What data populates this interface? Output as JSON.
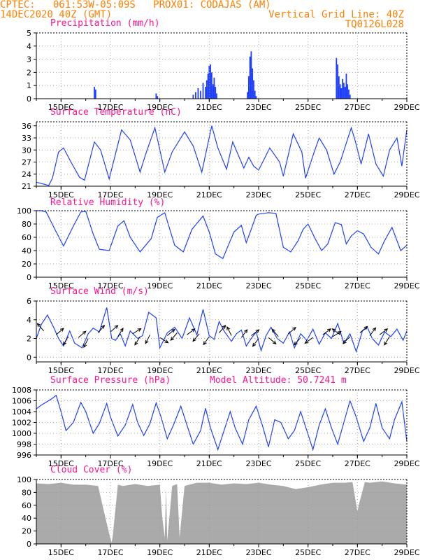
{
  "header": {
    "line1_left": "CPTEC:   061:53W-05:09S   PROX01: CODAJAS (AM)",
    "line2_left": "14DEC2020 40Z (GMT)",
    "line2_right": "Vertical Grid Line: 40Z",
    "line3_right": "TQ0126L028"
  },
  "colors": {
    "header": "#ff7f00",
    "title": "#ff1493",
    "series": "#1f3fff",
    "cloud": "#aaaaaa",
    "grid": "#999999"
  },
  "x_tick_labels": [
    "15DEC",
    "17DEC",
    "19DEC",
    "21DEC",
    "23DEC",
    "25DEC",
    "27DEC",
    "29DEC"
  ],
  "x_tick_days": [
    15,
    17,
    19,
    21,
    23,
    25,
    27,
    29
  ],
  "x_range": [
    14.0,
    29.0
  ],
  "chart_data": [
    {
      "type": "bar",
      "title": "Precipitation (mm/h)",
      "ylim": [
        0,
        5
      ],
      "yticks": [
        0,
        1,
        2,
        3,
        4,
        5
      ],
      "x": [
        16.35,
        16.4,
        18.85,
        18.9,
        20.35,
        20.45,
        20.55,
        20.65,
        20.75,
        20.85,
        20.9,
        20.95,
        21.0,
        21.05,
        21.1,
        21.15,
        21.2,
        21.25,
        21.3,
        22.55,
        22.6,
        22.65,
        22.7,
        22.75,
        22.8,
        22.85,
        22.9,
        26.15,
        26.2,
        26.25,
        26.3,
        26.35,
        26.4,
        26.45,
        26.5,
        26.55,
        26.6,
        26.65,
        26.7
      ],
      "values": [
        0.9,
        0.7,
        0.4,
        0.2,
        0.3,
        0.5,
        0.8,
        0.6,
        1.2,
        0.9,
        1.4,
        1.9,
        2.5,
        2.6,
        2.0,
        1.1,
        1.6,
        0.9,
        0.4,
        0.5,
        1.7,
        3.2,
        3.6,
        2.3,
        1.4,
        0.6,
        0.2,
        3.1,
        2.6,
        1.7,
        1.1,
        0.8,
        1.5,
        1.2,
        0.9,
        1.9,
        1.1,
        0.7,
        0.3
      ]
    },
    {
      "type": "line",
      "title": "Surface Temperature (nC)",
      "ylim": [
        21,
        37
      ],
      "yticks": [
        21,
        24,
        27,
        30,
        33,
        36
      ],
      "x": [
        14.0,
        14.25,
        14.5,
        14.65,
        14.9,
        15.1,
        15.4,
        15.75,
        15.95,
        16.35,
        16.6,
        16.95,
        17.45,
        17.8,
        18.2,
        18.4,
        18.8,
        19.0,
        19.2,
        19.5,
        20.0,
        20.35,
        20.7,
        21.1,
        21.35,
        21.7,
        21.95,
        22.4,
        22.6,
        22.8,
        23.0,
        23.45,
        23.85,
        24.0,
        24.4,
        24.75,
        24.9,
        25.25,
        25.45,
        25.75,
        26.05,
        26.3,
        26.75,
        26.9,
        27.15,
        27.45,
        27.75,
        28.05,
        28.3,
        28.6,
        28.8,
        29.0
      ],
      "values": [
        22.0,
        21.6,
        21.2,
        23.0,
        29.5,
        30.5,
        27.0,
        23.2,
        22.5,
        32.0,
        30.0,
        22.8,
        35.0,
        32.5,
        24.5,
        28.5,
        35.5,
        30.0,
        24.5,
        29.5,
        34.5,
        31.0,
        24.5,
        36.0,
        30.5,
        25.2,
        32.0,
        25.5,
        28.2,
        26.0,
        25.0,
        30.5,
        27.0,
        23.5,
        34.0,
        29.5,
        23.0,
        29.5,
        33.0,
        30.0,
        24.0,
        27.0,
        35.5,
        32.5,
        26.5,
        34.0,
        26.5,
        23.5,
        30.0,
        33.0,
        26.0,
        35.0
      ]
    },
    {
      "type": "line",
      "title": "Relative Humidity (%)",
      "ylim": [
        0,
        100
      ],
      "yticks": [
        0,
        20,
        40,
        60,
        80,
        100
      ],
      "x": [
        14.0,
        14.2,
        14.4,
        14.75,
        15.1,
        15.5,
        15.8,
        16.0,
        16.3,
        16.55,
        16.95,
        17.3,
        17.55,
        17.8,
        18.2,
        18.65,
        18.9,
        19.2,
        19.6,
        19.95,
        20.3,
        20.75,
        21.0,
        21.25,
        21.55,
        21.85,
        22.0,
        22.3,
        22.5,
        22.7,
        22.9,
        23.0,
        23.4,
        23.7,
        24.0,
        24.3,
        24.6,
        24.8,
        25.0,
        25.3,
        25.55,
        25.8,
        26.1,
        26.35,
        26.55,
        26.75,
        27.0,
        27.25,
        27.55,
        27.85,
        28.1,
        28.4,
        28.75,
        29.0
      ],
      "values": [
        100,
        100,
        98,
        72,
        47,
        77,
        98,
        99,
        65,
        42,
        40,
        77,
        85,
        60,
        38,
        58,
        90,
        97,
        48,
        38,
        72,
        92,
        68,
        35,
        28,
        55,
        68,
        78,
        52,
        72,
        93,
        95,
        97,
        96,
        45,
        38,
        55,
        72,
        80,
        57,
        40,
        50,
        82,
        79,
        50,
        62,
        70,
        65,
        45,
        35,
        55,
        75,
        40,
        48
      ]
    },
    {
      "type": "line",
      "title": "Surface Wind (m/s)",
      "ylim": [
        -0.5,
        6
      ],
      "yticks": [
        0,
        2,
        4,
        6
      ],
      "x": [
        14.0,
        14.2,
        14.45,
        14.7,
        14.9,
        15.1,
        15.35,
        15.55,
        15.85,
        16.1,
        16.3,
        16.55,
        16.85,
        17.05,
        17.2,
        17.4,
        17.6,
        17.8,
        18.1,
        18.3,
        18.55,
        18.85,
        19.0,
        19.3,
        19.6,
        19.9,
        20.2,
        20.5,
        20.75,
        21.0,
        21.2,
        21.4,
        21.6,
        21.9,
        22.1,
        22.3,
        22.5,
        22.7,
        22.9,
        23.1,
        23.3,
        23.5,
        23.75,
        24.0,
        24.25,
        24.45,
        24.7,
        24.95,
        25.2,
        25.45,
        25.7,
        25.95,
        26.2,
        26.45,
        26.7,
        26.95,
        27.2,
        27.4,
        27.6,
        27.85,
        28.1,
        28.35,
        28.6,
        28.85,
        29.0
      ],
      "values": [
        2.0,
        3.5,
        4.5,
        3.2,
        2.0,
        1.2,
        2.8,
        1.5,
        1.0,
        2.5,
        3.1,
        2.7,
        5.3,
        2.0,
        1.8,
        2.5,
        1.2,
        2.8,
        2.0,
        2.3,
        4.8,
        4.2,
        1.0,
        2.6,
        3.2,
        2.0,
        4.2,
        2.4,
        5.1,
        2.3,
        1.9,
        3.8,
        2.8,
        1.7,
        2.5,
        2.9,
        1.2,
        2.0,
        2.7,
        0.7,
        2.3,
        3.2,
        2.0,
        1.5,
        2.7,
        1.0,
        2.5,
        1.8,
        3.0,
        1.4,
        2.6,
        2.0,
        3.6,
        1.5,
        2.5,
        0.6,
        2.8,
        3.2,
        2.0,
        1.3,
        2.7,
        2.2,
        3.0,
        1.8,
        2.8
      ],
      "arrows": {
        "x": [
          14.3,
          14.8,
          15.3,
          15.7,
          16.1,
          16.5,
          17.0,
          17.3,
          17.9,
          18.2,
          18.6,
          19.0,
          19.3,
          19.7,
          20.1,
          20.6,
          21.0,
          21.4,
          21.9,
          22.3,
          22.7,
          23.0,
          23.4,
          23.8,
          24.2,
          24.7,
          25.2,
          25.6,
          26.0,
          26.3,
          26.7,
          27.1,
          27.5,
          27.9,
          28.3
        ],
        "y": [
          2.8,
          2.4,
          2.2,
          2.1,
          2.0,
          2.6,
          2.7,
          2.2,
          2.5,
          2.2,
          2.4,
          2.1,
          2.3,
          2.6,
          2.4,
          2.5,
          2.2,
          2.6,
          2.3,
          2.1,
          2.3,
          2.0,
          2.1,
          2.2,
          2.5,
          2.1,
          2.1,
          2.4,
          2.2,
          2.4,
          2.2,
          2.6,
          2.3,
          2.4,
          2.2
        ],
        "u": [
          -0.6,
          0.7,
          -0.5,
          0.6,
          -0.4,
          0.5,
          0.8,
          0.5,
          0.8,
          -0.5,
          -0.4,
          0.8,
          0.7,
          -0.6,
          0.8,
          -0.6,
          -0.5,
          0.6,
          -0.4,
          0.6,
          0.8,
          -0.6,
          0.7,
          -0.6,
          0.7,
          -0.6,
          -0.7,
          0.8,
          0.8,
          -0.8,
          -0.6,
          0.7,
          0.6,
          0.8,
          -0.5
        ],
        "v": [
          0.7,
          0.6,
          -0.8,
          0.5,
          -0.8,
          0.6,
          0.7,
          0.8,
          0.5,
          -0.8,
          -0.8,
          -0.5,
          0.6,
          -0.7,
          0.6,
          -0.7,
          -0.7,
          0.7,
          0.8,
          0.8,
          0.6,
          -0.8,
          -0.6,
          0.7,
          0.6,
          -0.7,
          -0.5,
          0.6,
          0.5,
          0.6,
          -0.6,
          0.6,
          0.8,
          0.6,
          -0.8
        ]
      }
    },
    {
      "type": "line",
      "title": "Surface Pressure (hPa)",
      "annotation": "Model Altitude: 50.7241 m",
      "ylim": [
        996,
        1008
      ],
      "yticks": [
        996,
        998,
        1000,
        1002,
        1004,
        1006,
        1008
      ],
      "x": [
        14.0,
        14.2,
        14.6,
        14.8,
        15.0,
        15.2,
        15.5,
        15.8,
        16.0,
        16.3,
        16.55,
        16.85,
        17.0,
        17.3,
        17.6,
        17.9,
        18.1,
        18.35,
        18.6,
        18.85,
        19.05,
        19.3,
        19.55,
        19.85,
        20.1,
        20.35,
        20.65,
        20.85,
        21.05,
        21.35,
        21.6,
        21.85,
        22.05,
        22.35,
        22.6,
        22.9,
        23.15,
        23.4,
        23.65,
        23.9,
        24.2,
        24.45,
        24.7,
        24.95,
        25.2,
        25.45,
        25.7,
        25.95,
        26.2,
        26.45,
        26.7,
        26.95,
        27.25,
        27.5,
        27.75,
        28.0,
        28.3,
        28.5,
        28.8,
        29.0
      ],
      "values": [
        1004.5,
        1005.2,
        1006.3,
        1007.0,
        1004.0,
        1000.5,
        1002.0,
        1005.7,
        1004.0,
        1000.0,
        1001.8,
        1005.5,
        1003.0,
        999.5,
        1001.5,
        1005.3,
        1002.0,
        999.6,
        1001.8,
        1005.6,
        1003.0,
        999.0,
        1001.5,
        1005.0,
        1001.5,
        998.0,
        1000.5,
        1004.6,
        1001.0,
        997.0,
        1000.5,
        1004.0,
        1001.0,
        998.0,
        1002.5,
        1005.0,
        1001.5,
        997.5,
        1002.5,
        1002.0,
        999.0,
        1000.5,
        1004.0,
        1000.5,
        997.0,
        1001.5,
        1004.5,
        1001.0,
        998.0,
        1002.0,
        1006.0,
        1003.0,
        998.5,
        1001.0,
        1005.5,
        1001.0,
        999.0,
        1002.5,
        1005.8,
        998.5
      ]
    },
    {
      "type": "area",
      "title": "Cloud Cover (%)",
      "ylim": [
        0,
        100
      ],
      "yticks": [
        0,
        20,
        40,
        60,
        80,
        100
      ],
      "x": [
        14.0,
        14.5,
        15.0,
        15.5,
        16.0,
        16.5,
        16.8,
        17.0,
        17.05,
        17.1,
        17.3,
        17.5,
        18.0,
        18.5,
        19.0,
        19.1,
        19.2,
        19.25,
        19.3,
        19.5,
        19.7,
        19.8,
        20.0,
        20.5,
        21.0,
        21.5,
        22.0,
        22.5,
        23.0,
        23.5,
        24.0,
        24.5,
        25.0,
        25.5,
        26.0,
        26.5,
        26.8,
        27.0,
        27.05,
        27.3,
        27.5,
        28.0,
        28.5,
        29.0
      ],
      "values": [
        94,
        93,
        95,
        92,
        92,
        90,
        40,
        8,
        2,
        15,
        92,
        90,
        93,
        90,
        92,
        40,
        10,
        85,
        5,
        90,
        93,
        10,
        90,
        95,
        95,
        92,
        94,
        93,
        95,
        92,
        90,
        85,
        88,
        92,
        95,
        95,
        96,
        50,
        60,
        96,
        95,
        97,
        94,
        92
      ]
    }
  ]
}
